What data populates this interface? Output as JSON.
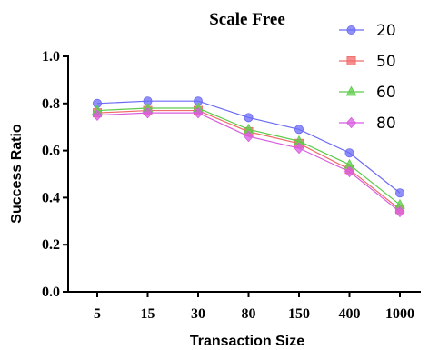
{
  "chart_data": {
    "type": "line",
    "title": "Scale Free",
    "xlabel": "Transaction Size",
    "ylabel": "Success Ratio",
    "categories": [
      "5",
      "15",
      "30",
      "80",
      "150",
      "400",
      "1000"
    ],
    "ylim": [
      0.0,
      1.0
    ],
    "yticks": [
      "0.0",
      "0.2",
      "0.4",
      "0.6",
      "0.8",
      "1.0"
    ],
    "grid": false,
    "legend_position": "top-right",
    "series": [
      {
        "name": "20",
        "color": "#6b6bf5",
        "marker": "circle",
        "values": [
          0.8,
          0.81,
          0.81,
          0.74,
          0.69,
          0.59,
          0.42
        ]
      },
      {
        "name": "50",
        "color": "#f26a6a",
        "marker": "square",
        "values": [
          0.76,
          0.77,
          0.77,
          0.68,
          0.63,
          0.52,
          0.35
        ]
      },
      {
        "name": "60",
        "color": "#5ccc4a",
        "marker": "triangle",
        "values": [
          0.77,
          0.78,
          0.78,
          0.69,
          0.64,
          0.54,
          0.37
        ]
      },
      {
        "name": "80",
        "color": "#d85ce0",
        "marker": "diamond",
        "values": [
          0.75,
          0.76,
          0.76,
          0.66,
          0.61,
          0.51,
          0.34
        ]
      }
    ]
  }
}
